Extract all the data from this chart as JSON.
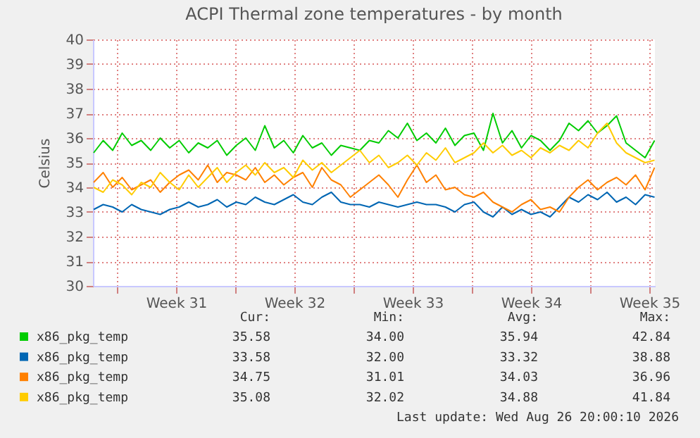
{
  "chart_data": {
    "type": "line",
    "title": "ACPI Thermal zone temperatures - by month",
    "ylabel": "Celsius",
    "x": [
      "2026-07-25T15:00",
      "2026-07-26T04:30",
      "2026-07-26T18:00",
      "2026-07-27T07:30",
      "2026-07-27T21:00",
      "2026-07-28T10:30",
      "2026-07-29T00:00",
      "2026-07-29T13:30",
      "2026-07-30T03:00",
      "2026-07-30T16:30",
      "2026-07-31T06:00",
      "2026-07-31T19:30",
      "2026-08-01T09:00",
      "2026-08-01T22:30",
      "2026-08-02T12:00",
      "2026-08-03T01:30",
      "2026-08-03T15:00",
      "2026-08-04T04:30",
      "2026-08-04T18:00",
      "2026-08-05T07:30",
      "2026-08-05T21:00",
      "2026-08-06T10:30",
      "2026-08-07T00:00",
      "2026-08-07T13:30",
      "2026-08-08T03:00",
      "2026-08-08T16:30",
      "2026-08-09T06:00",
      "2026-08-09T19:30",
      "2026-08-10T09:00",
      "2026-08-10T22:30",
      "2026-08-11T12:00",
      "2026-08-12T01:30",
      "2026-08-12T15:00",
      "2026-08-13T04:30",
      "2026-08-13T18:00",
      "2026-08-14T07:30",
      "2026-08-14T21:00",
      "2026-08-15T10:30",
      "2026-08-16T00:00",
      "2026-08-16T13:30",
      "2026-08-17T03:00",
      "2026-08-17T16:30",
      "2026-08-18T06:00",
      "2026-08-18T19:30",
      "2026-08-19T09:00",
      "2026-08-19T22:30",
      "2026-08-20T12:00",
      "2026-08-21T01:30",
      "2026-08-21T15:00",
      "2026-08-22T04:30",
      "2026-08-22T18:00",
      "2026-08-23T07:30",
      "2026-08-23T21:00",
      "2026-08-24T10:30",
      "2026-08-25T00:00",
      "2026-08-25T13:30",
      "2026-08-26T03:00",
      "2026-08-26T16:30",
      "2026-08-27T06:00",
      "2026-08-27T19:30"
    ],
    "series": [
      {
        "name": "x86_pkg_temp",
        "color": "#00cc00",
        "values": [
          35.4,
          35.9,
          35.5,
          36.2,
          35.7,
          35.9,
          35.5,
          36.0,
          35.6,
          35.9,
          35.4,
          35.8,
          35.6,
          35.9,
          35.3,
          35.7,
          36.0,
          35.5,
          36.5,
          35.6,
          35.9,
          35.4,
          36.1,
          35.6,
          35.8,
          35.3,
          35.7,
          35.6,
          35.5,
          35.9,
          35.8,
          36.3,
          36.0,
          36.6,
          35.9,
          36.2,
          35.8,
          36.4,
          35.7,
          36.1,
          36.2,
          35.5,
          37.0,
          35.8,
          36.3,
          35.6,
          36.1,
          35.9,
          35.5,
          35.9,
          36.6,
          36.3,
          36.7,
          36.2,
          36.5,
          36.9,
          35.8,
          35.5,
          35.2,
          35.9
        ]
      },
      {
        "name": "x86_pkg_temp",
        "color": "#0066b3",
        "values": [
          33.1,
          33.3,
          33.2,
          33.0,
          33.3,
          33.1,
          33.0,
          32.9,
          33.1,
          33.2,
          33.4,
          33.2,
          33.3,
          33.5,
          33.2,
          33.4,
          33.3,
          33.6,
          33.4,
          33.3,
          33.5,
          33.7,
          33.4,
          33.3,
          33.6,
          33.8,
          33.4,
          33.3,
          33.3,
          33.2,
          33.4,
          33.3,
          33.2,
          33.3,
          33.4,
          33.3,
          33.3,
          33.2,
          33.0,
          33.3,
          33.4,
          33.0,
          32.8,
          33.2,
          32.9,
          33.1,
          32.9,
          33.0,
          32.8,
          33.2,
          33.6,
          33.4,
          33.7,
          33.5,
          33.8,
          33.4,
          33.6,
          33.3,
          33.7,
          33.6
        ]
      },
      {
        "name": "x86_pkg_temp",
        "color": "#ff8000",
        "values": [
          34.2,
          34.6,
          34.0,
          34.4,
          33.9,
          34.1,
          34.3,
          33.8,
          34.2,
          34.5,
          34.7,
          34.3,
          34.9,
          34.2,
          34.6,
          34.5,
          34.3,
          34.8,
          34.2,
          34.5,
          34.1,
          34.4,
          34.6,
          34.0,
          34.8,
          34.3,
          34.1,
          33.6,
          33.9,
          34.2,
          34.5,
          34.1,
          33.6,
          34.3,
          34.9,
          34.2,
          34.5,
          33.9,
          34.0,
          33.7,
          33.6,
          33.8,
          33.4,
          33.2,
          33.0,
          33.3,
          33.5,
          33.1,
          33.2,
          33.0,
          33.6,
          34.0,
          34.3,
          33.9,
          34.2,
          34.4,
          34.1,
          34.5,
          33.9,
          34.8
        ]
      },
      {
        "name": "x86_pkg_temp",
        "color": "#ffcc00",
        "values": [
          34.0,
          33.8,
          34.3,
          34.1,
          33.7,
          34.2,
          34.0,
          34.6,
          34.2,
          33.9,
          34.5,
          34.0,
          34.4,
          34.8,
          34.2,
          34.6,
          34.9,
          34.5,
          35.0,
          34.6,
          34.8,
          34.4,
          35.1,
          34.7,
          35.0,
          34.6,
          34.9,
          35.2,
          35.5,
          35.0,
          35.3,
          34.8,
          35.0,
          35.3,
          34.9,
          35.4,
          35.1,
          35.6,
          35.0,
          35.2,
          35.4,
          35.8,
          35.4,
          35.7,
          35.3,
          35.5,
          35.2,
          35.6,
          35.4,
          35.7,
          35.5,
          35.9,
          35.6,
          36.2,
          36.6,
          35.8,
          35.4,
          35.2,
          35.0,
          35.1
        ]
      }
    ],
    "xlim": [
      "2026-07-25T14:00",
      "2026-08-27T20:00"
    ],
    "xticks": [
      {
        "value": "2026-07-27",
        "label": null
      },
      {
        "value": "2026-07-30T12:00",
        "label": "Week 31"
      },
      {
        "value": "2026-08-03",
        "label": null
      },
      {
        "value": "2026-08-06T12:00",
        "label": "Week 32"
      },
      {
        "value": "2026-08-10",
        "label": null
      },
      {
        "value": "2026-08-13T12:00",
        "label": "Week 33"
      },
      {
        "value": "2026-08-17",
        "label": null
      },
      {
        "value": "2026-08-20T12:00",
        "label": "Week 34"
      },
      {
        "value": "2026-08-24",
        "label": null
      },
      {
        "value": "2026-08-27T12:00",
        "label": "Week 35"
      }
    ],
    "ylim": [
      30,
      40
    ],
    "yticks": [
      30,
      31,
      32,
      33,
      34,
      35,
      36,
      37,
      38,
      39,
      40
    ],
    "grid": true,
    "legend": "bottom",
    "annotations": [
      "Cur:",
      "Min:",
      "Avg:",
      "Max:",
      "35.58",
      "34.00",
      "35.94",
      "42.84",
      "33.58",
      "32.00",
      "33.32",
      "38.88",
      "34.75",
      "31.01",
      "34.03",
      "36.96",
      "35.08",
      "32.02",
      "34.88",
      "41.84",
      "Last update: Wed Aug 26 20:00:10 2026"
    ]
  }
}
